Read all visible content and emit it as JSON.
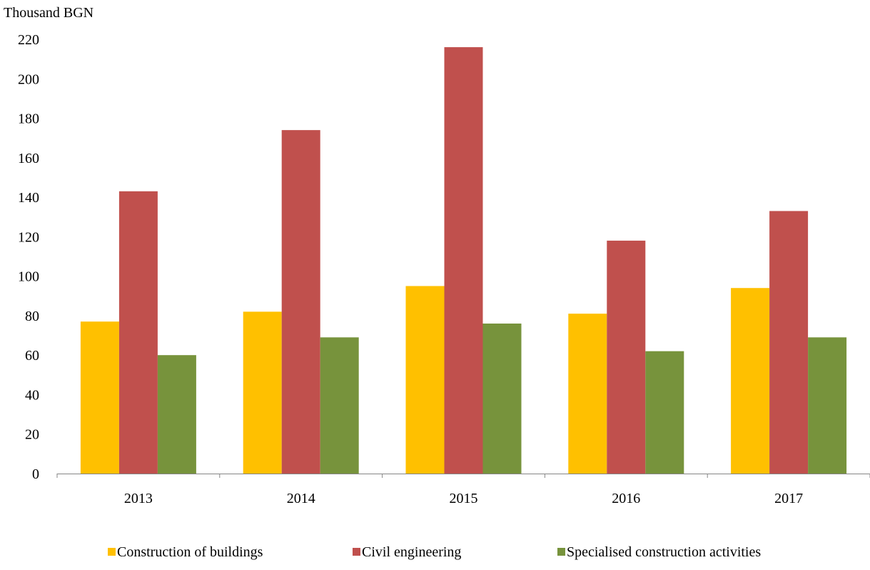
{
  "chart_data": {
    "type": "bar",
    "ylabel": "Thousand BGN",
    "categories": [
      "2013",
      "2014",
      "2015",
      "2016",
      "2017"
    ],
    "series": [
      {
        "name": "Construction of buildings",
        "color": "#FFC000",
        "values": [
          77,
          82,
          95,
          81,
          94
        ]
      },
      {
        "name": "Civil engineering",
        "color": "#C0504D",
        "values": [
          143,
          174,
          216,
          118,
          133
        ]
      },
      {
        "name": "Specialised construction activities",
        "color": "#77933C",
        "values": [
          60,
          69,
          76,
          62,
          69
        ]
      }
    ],
    "ylim": [
      0,
      220
    ],
    "yticks": [
      "0",
      "20",
      "40",
      "60",
      "80",
      "100",
      "120",
      "140",
      "160",
      "180",
      "200",
      "220"
    ],
    "grid": false,
    "legend": "bottom"
  }
}
